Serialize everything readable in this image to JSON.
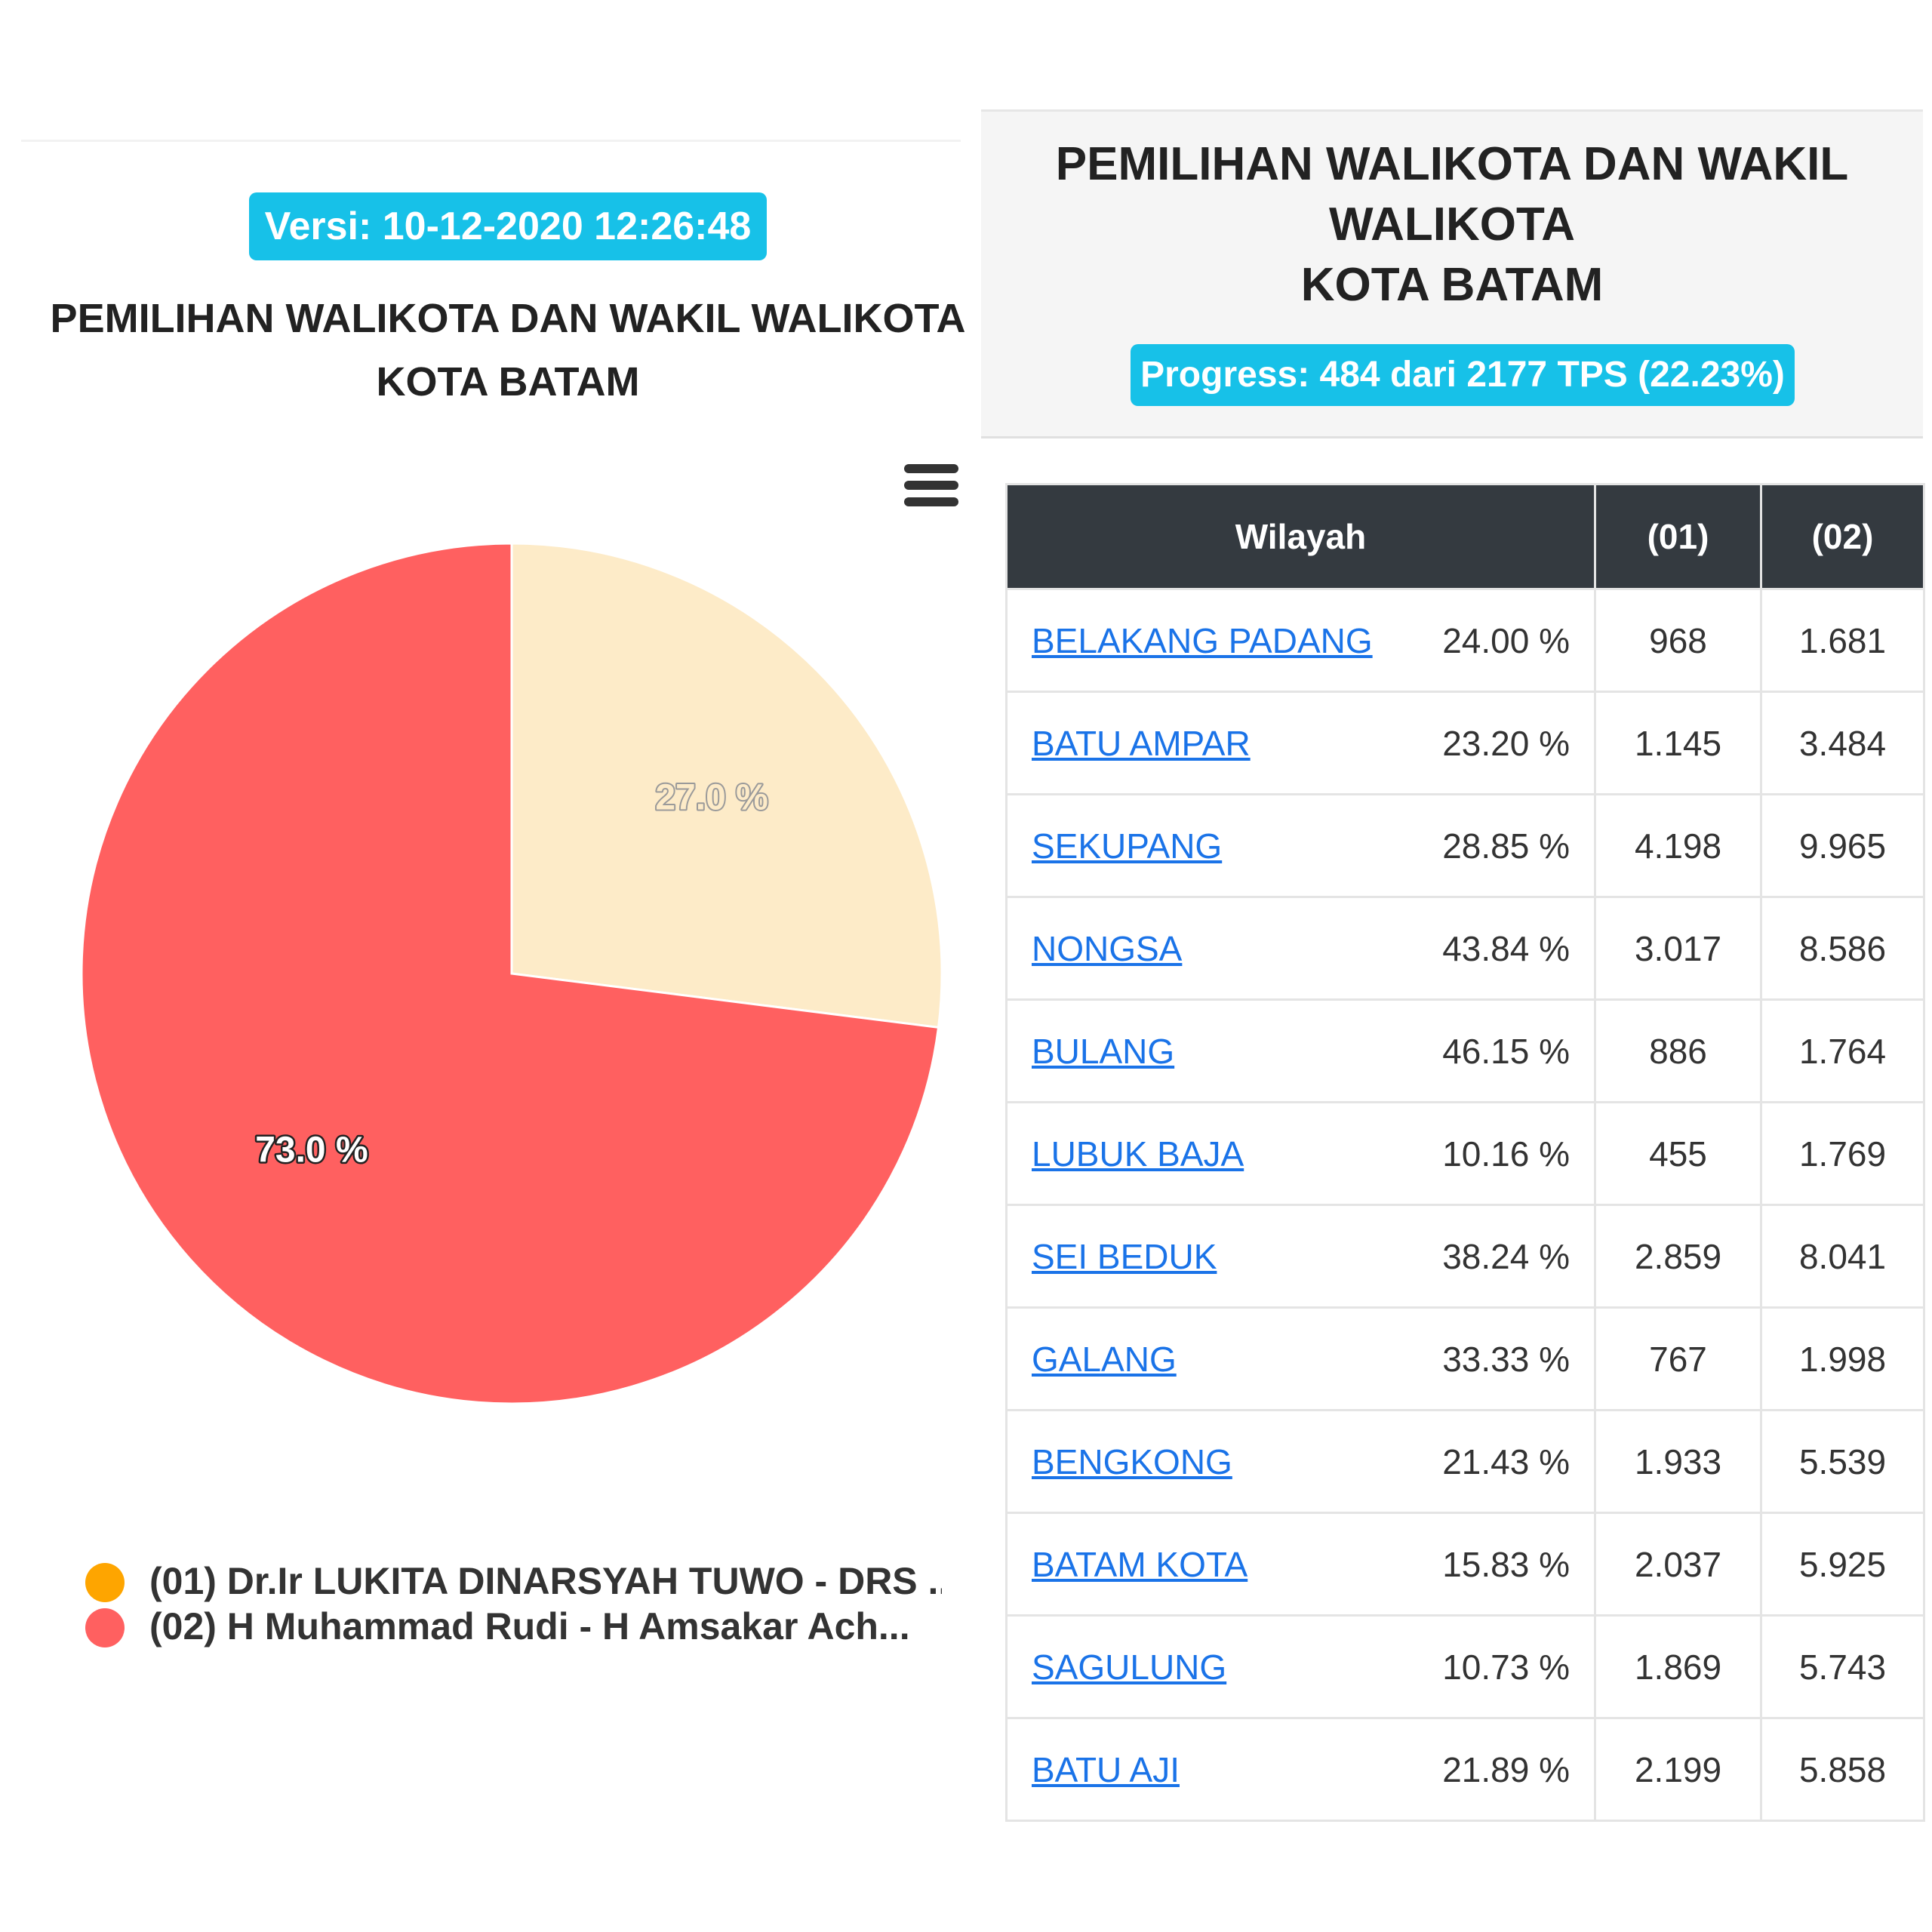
{
  "left": {
    "version_label": "Versi: 10-12-2020 12:26:48",
    "title_line1": "PEMILIHAN WALIKOTA DAN WAKIL WALIKOTA",
    "title_line2": "KOTA BATAM",
    "menu_icon": "hamburger-menu-icon"
  },
  "chart_data": {
    "type": "pie",
    "title": "",
    "slices": [
      {
        "label": "(01) Dr.Ir LUKITA DINARSYAH TUWO - DRS ...",
        "value": 27.0,
        "value_label": "27.0 %",
        "color": "#fdebc8"
      },
      {
        "label": "(02) H Muhammad Rudi - H Amsakar Ach...",
        "value": 73.0,
        "value_label": "73.0 %",
        "color": "#ff6060"
      }
    ],
    "legend": [
      {
        "label": "(01) Dr.Ir LUKITA DINARSYAH TUWO - DRS ...",
        "color": "#fea500"
      },
      {
        "label": "(02) H Muhammad Rudi - H Amsakar Ach...",
        "color": "#ff6060"
      }
    ],
    "legend_position": "bottom-left"
  },
  "right": {
    "title_line1": "PEMILIHAN WALIKOTA DAN WAKIL",
    "title_line2": "WALIKOTA",
    "title_line3": "KOTA BATAM",
    "progress_label": "Progress: 484 dari 2177 TPS (22.23%)",
    "table": {
      "headers": [
        "Wilayah",
        "(01)",
        "(02)"
      ],
      "rows": [
        {
          "name": "BELAKANG PADANG",
          "pct": "24.00 %",
          "c01": "968",
          "c02": "1.681"
        },
        {
          "name": "BATU AMPAR",
          "pct": "23.20 %",
          "c01": "1.145",
          "c02": "3.484"
        },
        {
          "name": "SEKUPANG",
          "pct": "28.85 %",
          "c01": "4.198",
          "c02": "9.965"
        },
        {
          "name": "NONGSA",
          "pct": "43.84 %",
          "c01": "3.017",
          "c02": "8.586"
        },
        {
          "name": "BULANG",
          "pct": "46.15 %",
          "c01": "886",
          "c02": "1.764"
        },
        {
          "name": "LUBUK BAJA",
          "pct": "10.16 %",
          "c01": "455",
          "c02": "1.769"
        },
        {
          "name": "SEI BEDUK",
          "pct": "38.24 %",
          "c01": "2.859",
          "c02": "8.041"
        },
        {
          "name": "GALANG",
          "pct": "33.33 %",
          "c01": "767",
          "c02": "1.998"
        },
        {
          "name": "BENGKONG",
          "pct": "21.43 %",
          "c01": "1.933",
          "c02": "5.539"
        },
        {
          "name": "BATAM KOTA",
          "pct": "15.83 %",
          "c01": "2.037",
          "c02": "5.925"
        },
        {
          "name": "SAGULUNG",
          "pct": "10.73 %",
          "c01": "1.869",
          "c02": "5.743"
        },
        {
          "name": "BATU AJI",
          "pct": "21.89 %",
          "c01": "2.199",
          "c02": "5.858"
        }
      ]
    }
  }
}
